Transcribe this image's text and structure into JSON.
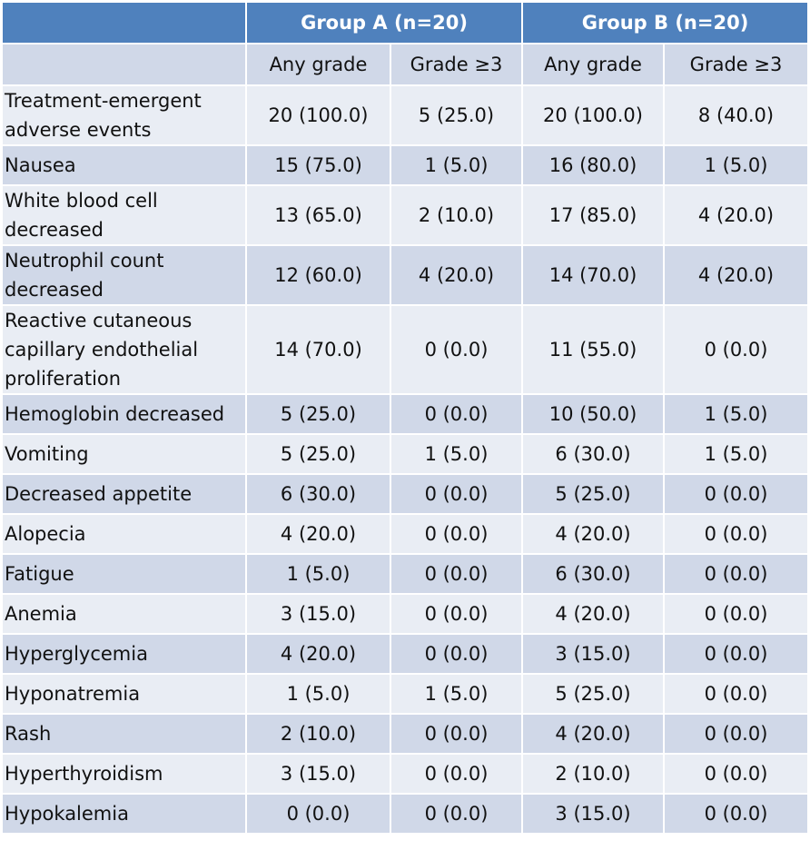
{
  "header": {
    "group_a": "Group A (n=20)",
    "group_b": "Group B (n=20)",
    "sub": [
      "Any grade",
      "Grade ≥3",
      "Any grade",
      "Grade ≥3"
    ]
  },
  "rows": [
    {
      "label": "Treatment-emergent adverse events",
      "a_any": "20 (100.0)",
      "a_g3": "5 (25.0)",
      "b_any": "20 (100.0)",
      "b_g3": "8 (40.0)"
    },
    {
      "label": "Nausea",
      "a_any": "15 (75.0)",
      "a_g3": "1 (5.0)",
      "b_any": "16 (80.0)",
      "b_g3": "1 (5.0)"
    },
    {
      "label": "White blood cell decreased",
      "a_any": "13 (65.0)",
      "a_g3": "2 (10.0)",
      "b_any": "17 (85.0)",
      "b_g3": "4 (20.0)"
    },
    {
      "label": "Neutrophil count decreased",
      "a_any": "12 (60.0)",
      "a_g3": "4 (20.0)",
      "b_any": "14 (70.0)",
      "b_g3": "4 (20.0)"
    },
    {
      "label": "Reactive cutaneous capillary endothelial proliferation",
      "a_any": "14 (70.0)",
      "a_g3": "0 (0.0)",
      "b_any": "11 (55.0)",
      "b_g3": "0 (0.0)"
    },
    {
      "label": "Hemoglobin decreased",
      "a_any": "5 (25.0)",
      "a_g3": "0 (0.0)",
      "b_any": "10 (50.0)",
      "b_g3": "1 (5.0)"
    },
    {
      "label": "Vomiting",
      "a_any": "5 (25.0)",
      "a_g3": "1 (5.0)",
      "b_any": "6 (30.0)",
      "b_g3": "1 (5.0)"
    },
    {
      "label": "Decreased appetite",
      "a_any": "6 (30.0)",
      "a_g3": "0 (0.0)",
      "b_any": "5 (25.0)",
      "b_g3": "0 (0.0)"
    },
    {
      "label": "Alopecia",
      "a_any": "4 (20.0)",
      "a_g3": "0 (0.0)",
      "b_any": "4 (20.0)",
      "b_g3": "0 (0.0)"
    },
    {
      "label": "Fatigue",
      "a_any": "1 (5.0)",
      "a_g3": "0 (0.0)",
      "b_any": "6 (30.0)",
      "b_g3": "0 (0.0)"
    },
    {
      "label": "Anemia",
      "a_any": "3 (15.0)",
      "a_g3": "0 (0.0)",
      "b_any": "4 (20.0)",
      "b_g3": "0 (0.0)"
    },
    {
      "label": "Hyperglycemia",
      "a_any": "4 (20.0)",
      "a_g3": "0 (0.0)",
      "b_any": "3 (15.0)",
      "b_g3": "0 (0.0)"
    },
    {
      "label": "Hyponatremia",
      "a_any": "1 (5.0)",
      "a_g3": "1 (5.0)",
      "b_any": "5 (25.0)",
      "b_g3": "0 (0.0)"
    },
    {
      "label": "Rash",
      "a_any": "2 (10.0)",
      "a_g3": "0 (0.0)",
      "b_any": "4 (20.0)",
      "b_g3": "0 (0.0)"
    },
    {
      "label": "Hyperthyroidism",
      "a_any": "3 (15.0)",
      "a_g3": "0 (0.0)",
      "b_any": "2 (10.0)",
      "b_g3": "0 (0.0)"
    },
    {
      "label": "Hypokalemia",
      "a_any": "0 (0.0)",
      "a_g3": "0 (0.0)",
      "b_any": "3 (15.0)",
      "b_g3": "0 (0.0)"
    }
  ]
}
